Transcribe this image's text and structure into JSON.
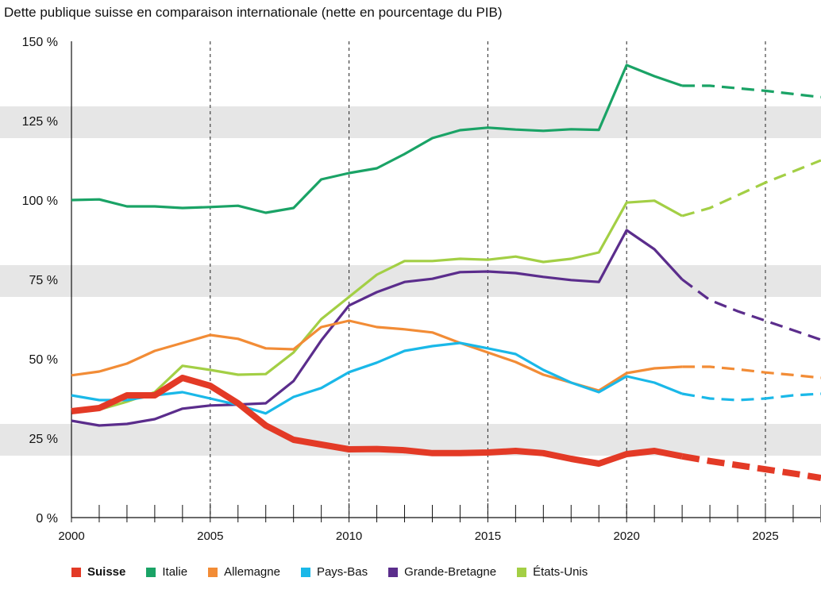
{
  "title": "Dette publique suisse en comparaison internationale (nette en pourcentage du PIB)",
  "chart_data": {
    "type": "line",
    "title": "Dette publique suisse en comparaison internationale (nette en pourcentage du PIB)",
    "xlabel": "",
    "ylabel": "",
    "xlim": [
      2000,
      2027
    ],
    "ylim": [
      0,
      150
    ],
    "x_ticks": [
      "2000",
      "2005",
      "2010",
      "2015",
      "2020",
      "2025"
    ],
    "y_ticks": [
      "0 %",
      "25 %",
      "50 %",
      "75 %",
      "100 %",
      "125 %",
      "150 %"
    ],
    "forecast_from": 2022,
    "series": [
      {
        "name": "Italie",
        "color": "#1aa366",
        "x": [
          2000,
          2001,
          2002,
          2003,
          2004,
          2005,
          2006,
          2007,
          2008,
          2009,
          2010,
          2011,
          2012,
          2013,
          2014,
          2015,
          2016,
          2017,
          2018,
          2019,
          2020,
          2021,
          2022,
          2023,
          2024,
          2025,
          2026,
          2027
        ],
        "values": [
          100,
          100.2,
          98,
          98,
          97.5,
          97.8,
          98.2,
          96,
          97.5,
          106.5,
          108.5,
          110,
          114.5,
          119.5,
          122,
          122.8,
          122.2,
          121.8,
          122.3,
          122.1,
          142.5,
          139,
          136,
          136,
          135.2,
          134.4,
          133.4,
          132.4
        ]
      },
      {
        "name": "États-Unis",
        "color": "#a3cf45",
        "x": [
          2001,
          2002,
          2003,
          2004,
          2005,
          2006,
          2007,
          2008,
          2009,
          2010,
          2011,
          2012,
          2013,
          2014,
          2015,
          2016,
          2017,
          2018,
          2019,
          2020,
          2021,
          2022,
          2023,
          2024,
          2025,
          2026,
          2027
        ],
        "values": [
          34,
          36.5,
          39.5,
          47.8,
          46.5,
          45,
          45.2,
          52,
          62.5,
          69.5,
          76.5,
          80.8,
          80.8,
          81.5,
          81.2,
          82.2,
          80.5,
          81.5,
          83.5,
          99.2,
          99.8,
          95,
          97.5,
          101.5,
          105.5,
          109,
          112.5
        ]
      },
      {
        "name": "Grande-Bretagne",
        "color": "#5b2d8c",
        "x": [
          2000,
          2001,
          2002,
          2003,
          2004,
          2005,
          2006,
          2007,
          2008,
          2009,
          2010,
          2011,
          2012,
          2013,
          2014,
          2015,
          2016,
          2017,
          2018,
          2019,
          2020,
          2021,
          2022,
          2023,
          2024,
          2025,
          2026,
          2027
        ],
        "values": [
          30.5,
          29,
          29.5,
          31,
          34.3,
          35.3,
          35.6,
          36,
          43,
          55.8,
          66.8,
          71,
          74.2,
          75.2,
          77.3,
          77.5,
          77,
          75.8,
          74.8,
          74.2,
          90.5,
          84.5,
          75,
          68.5,
          65,
          62,
          59,
          56
        ]
      },
      {
        "name": "Allemagne",
        "color": "#f28c36",
        "x": [
          2000,
          2001,
          2002,
          2003,
          2004,
          2005,
          2006,
          2007,
          2008,
          2009,
          2010,
          2011,
          2012,
          2013,
          2014,
          2015,
          2016,
          2017,
          2018,
          2019,
          2020,
          2021,
          2022,
          2023,
          2024,
          2025,
          2026,
          2027
        ],
        "values": [
          44.8,
          46,
          48.5,
          52.5,
          55,
          57.5,
          56.3,
          53.3,
          53,
          60,
          62,
          60,
          59.3,
          58.3,
          55,
          52,
          49,
          45,
          42.5,
          40,
          45.5,
          47,
          47.5,
          47.5,
          46.7,
          45.7,
          44.9,
          44
        ]
      },
      {
        "name": "Pays-Bas",
        "color": "#1ab8e8",
        "x": [
          2000,
          2001,
          2002,
          2003,
          2004,
          2005,
          2006,
          2007,
          2008,
          2009,
          2010,
          2011,
          2012,
          2013,
          2014,
          2015,
          2016,
          2017,
          2018,
          2019,
          2020,
          2021,
          2022,
          2023,
          2024,
          2025,
          2026,
          2027
        ],
        "values": [
          38.5,
          37,
          37,
          38.5,
          39.5,
          37.5,
          35.5,
          32.8,
          38,
          40.8,
          45.8,
          48.8,
          52.5,
          54,
          55,
          53.3,
          51.5,
          46.5,
          42.5,
          39.5,
          44.5,
          42.5,
          39,
          37.5,
          37,
          37.5,
          38.5,
          39
        ]
      },
      {
        "name": "Suisse",
        "color": "#e33a26",
        "x": [
          2000,
          2001,
          2002,
          2003,
          2004,
          2005,
          2006,
          2007,
          2008,
          2009,
          2010,
          2011,
          2012,
          2013,
          2014,
          2015,
          2016,
          2017,
          2018,
          2019,
          2020,
          2021,
          2022,
          2023,
          2024,
          2025,
          2026,
          2027
        ],
        "values": [
          33.5,
          34.5,
          38.5,
          38.5,
          44,
          41.5,
          36,
          29,
          24.5,
          23,
          21.5,
          21.6,
          21.2,
          20.3,
          20.3,
          20.5,
          21,
          20.3,
          18.5,
          17,
          20,
          21,
          19.3,
          17.8,
          16.5,
          15.2,
          13.9,
          12.5
        ]
      }
    ]
  },
  "legend": [
    {
      "label": "Suisse",
      "color": "#e33a26"
    },
    {
      "label": "Italie",
      "color": "#1aa366"
    },
    {
      "label": "Allemagne",
      "color": "#f28c36"
    },
    {
      "label": "Pays-Bas",
      "color": "#1ab8e8"
    },
    {
      "label": "Grande-Bretagne",
      "color": "#5b2d8c"
    },
    {
      "label": "États-Unis",
      "color": "#a3cf45"
    }
  ]
}
